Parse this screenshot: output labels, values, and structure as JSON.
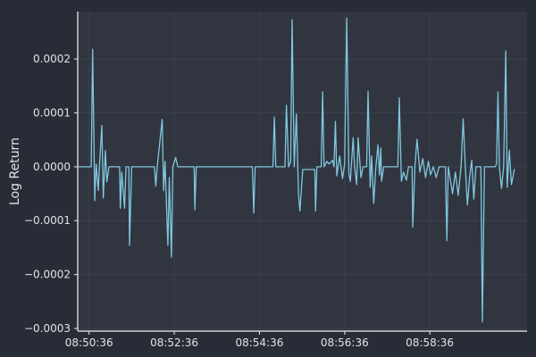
{
  "figure": {
    "colors": {
      "background_outer": "#282c36",
      "background_plot": "#30353f",
      "grid": "#3b414d",
      "spine": "#cfcfcf",
      "tick_text": "#e2e2e2",
      "line": "#81c7de"
    }
  },
  "chart_data": {
    "type": "line",
    "title": "",
    "xlabel": "",
    "ylabel": "Log Return",
    "x_unit": "seconds since 08:50:36",
    "grid": true,
    "legend": false,
    "xlim": [
      -16,
      617
    ],
    "ylim": [
      -0.000305,
      0.000288
    ],
    "x_ticks": [
      {
        "t": 0,
        "label": "08:50:36"
      },
      {
        "t": 120,
        "label": "08:52:36"
      },
      {
        "t": 240,
        "label": "08:54:36"
      },
      {
        "t": 360,
        "label": "08:56:36"
      },
      {
        "t": 480,
        "label": "08:58:36"
      }
    ],
    "y_ticks": [
      {
        "v": 0.0002,
        "label": "0.0002"
      },
      {
        "v": 0.0001,
        "label": "0.0001"
      },
      {
        "v": 0.0,
        "label": "0.0000"
      },
      {
        "v": -0.0001,
        "label": "−0.0001"
      },
      {
        "v": -0.0002,
        "label": "−0.0002"
      },
      {
        "v": -0.0003,
        "label": "−0.0003"
      }
    ],
    "series": [
      {
        "name": "log_return",
        "points": [
          [
            -15,
            0
          ],
          [
            3,
            0
          ],
          [
            5,
            0.000218
          ],
          [
            8,
            -6.3e-05
          ],
          [
            10,
            5e-06
          ],
          [
            13,
            -4.4e-05
          ],
          [
            15,
            1e-05
          ],
          [
            18,
            7.7e-05
          ],
          [
            20,
            -5.8e-05
          ],
          [
            23,
            3e-05
          ],
          [
            25,
            -2.8e-05
          ],
          [
            28,
            0
          ],
          [
            43,
            0
          ],
          [
            44,
            -7.7e-05
          ],
          [
            46,
            -1e-05
          ],
          [
            50,
            -7.7e-05
          ],
          [
            52,
            0
          ],
          [
            56,
            0
          ],
          [
            57,
            -0.000146
          ],
          [
            60,
            0
          ],
          [
            92,
            0
          ],
          [
            94,
            -3.6e-05
          ],
          [
            96,
            0
          ],
          [
            103,
            8.8e-05
          ],
          [
            105,
            -4.4e-05
          ],
          [
            107,
            1e-05
          ],
          [
            111,
            -0.000146
          ],
          [
            113,
            -2e-05
          ],
          [
            116,
            -0.000168
          ],
          [
            118,
            0
          ],
          [
            122,
            1.7e-05
          ],
          [
            125,
            0
          ],
          [
            148,
            0
          ],
          [
            149,
            -8e-05
          ],
          [
            151,
            0
          ],
          [
            230,
            0
          ],
          [
            232,
            -8.6e-05
          ],
          [
            234,
            0
          ],
          [
            259,
            0
          ],
          [
            261,
            9.2e-05
          ],
          [
            263,
            0
          ],
          [
            276,
            0
          ],
          [
            278,
            0.000114
          ],
          [
            281,
            0
          ],
          [
            284,
            1e-05
          ],
          [
            286,
            0.000273
          ],
          [
            289,
            0
          ],
          [
            292,
            9.8e-05
          ],
          [
            295,
            -5.1e-05
          ],
          [
            297,
            -8.2e-05
          ],
          [
            301,
            -5e-06
          ],
          [
            318,
            -5e-06
          ],
          [
            319,
            -8.2e-05
          ],
          [
            321,
            0
          ],
          [
            327,
            0
          ],
          [
            329,
            0.000139
          ],
          [
            331,
            0
          ],
          [
            335,
            1e-05
          ],
          [
            338,
            5e-06
          ],
          [
            343,
            1.2e-05
          ],
          [
            345,
            0
          ],
          [
            347,
            8.4e-05
          ],
          [
            349,
            -1.7e-05
          ],
          [
            353,
            2e-05
          ],
          [
            357,
            -2.2e-05
          ],
          [
            360,
            5e-06
          ],
          [
            363,
            0.000276
          ],
          [
            366,
            -1.2e-05
          ],
          [
            368,
            -2.7e-05
          ],
          [
            372,
            5.4e-05
          ],
          [
            374,
            0
          ],
          [
            377,
            -3.3e-05
          ],
          [
            379,
            5.4e-05
          ],
          [
            383,
            -2e-05
          ],
          [
            386,
            0
          ],
          [
            391,
            0
          ],
          [
            393,
            0.00014
          ],
          [
            396,
            -3.8e-05
          ],
          [
            398,
            2e-05
          ],
          [
            401,
            -6.8e-05
          ],
          [
            404,
            0
          ],
          [
            407,
            4.1e-05
          ],
          [
            409,
            -1.5e-05
          ],
          [
            411,
            3.5e-05
          ],
          [
            412,
            -2.7e-05
          ],
          [
            415,
            0
          ],
          [
            435,
            0
          ],
          [
            437,
            0.000128
          ],
          [
            440,
            -2.7e-05
          ],
          [
            443,
            -1e-05
          ],
          [
            447,
            -2.5e-05
          ],
          [
            450,
            0
          ],
          [
            455,
            0
          ],
          [
            456,
            -0.000112
          ],
          [
            459,
            0
          ],
          [
            462,
            5.1e-05
          ],
          [
            466,
            -1e-05
          ],
          [
            470,
            1.5e-05
          ],
          [
            474,
            -2e-05
          ],
          [
            478,
            1e-05
          ],
          [
            481,
            -1.5e-05
          ],
          [
            485,
            0
          ],
          [
            489,
            -2e-05
          ],
          [
            493,
            0
          ],
          [
            502,
            0
          ],
          [
            504,
            -0.000137
          ],
          [
            506,
            0
          ],
          [
            512,
            -5e-05
          ],
          [
            516,
            -1e-05
          ],
          [
            520,
            -5.3e-05
          ],
          [
            524,
            0
          ],
          [
            527,
            8.9e-05
          ],
          [
            530,
            0
          ],
          [
            533,
            -7.1e-05
          ],
          [
            536,
            -2e-05
          ],
          [
            539,
            1.2e-05
          ],
          [
            542,
            -6e-05
          ],
          [
            545,
            0
          ],
          [
            552,
            0
          ],
          [
            554,
            -0.000288
          ],
          [
            557,
            0
          ],
          [
            572,
            0
          ],
          [
            574,
            5e-06
          ],
          [
            576,
            0.000139
          ],
          [
            578,
            0
          ],
          [
            581,
            -4e-05
          ],
          [
            584,
            0
          ],
          [
            587,
            0.000215
          ],
          [
            589,
            -3.8e-05
          ],
          [
            592,
            3.1e-05
          ],
          [
            595,
            -3.3e-05
          ],
          [
            599,
            -5e-06
          ]
        ]
      }
    ]
  }
}
